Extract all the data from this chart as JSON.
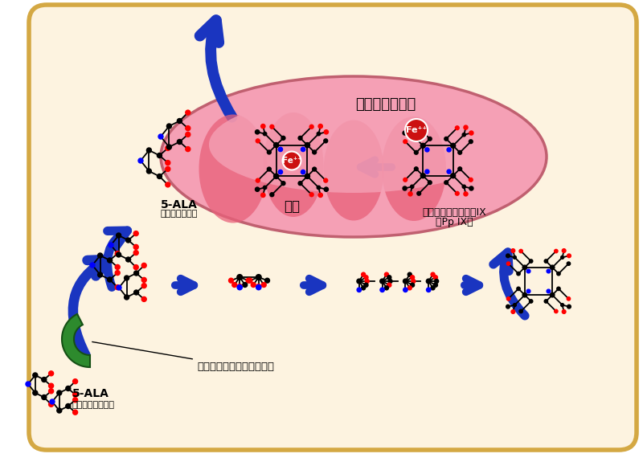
{
  "bg_color": "#ffffff",
  "cell_bg": "#fdf3e0",
  "cell_border": "#d4a843",
  "mito_outer_color": "#f5a0b5",
  "mito_inner_color": "#e8607a",
  "arrow_color": "#1a35c0",
  "fe_color": "#cc1111",
  "fe_text_color": "#ffffff",
  "green_color": "#2d8a2d",
  "mito_label": "ミトコンドリア",
  "heme_label": "ヘム",
  "ppix_label1": "プロトポルフィリンIX",
  "ppix_label2": "（Pp IX）",
  "fe_label": "Fe⁺⁺",
  "ala_body_label": "5-ALA",
  "ala_body_sub": "（体内で生成）",
  "ala_intake_label": "5-ALA",
  "ala_intake_sub": "（摄取したもの）",
  "transporter_label": "ペプチドトランスポーター"
}
